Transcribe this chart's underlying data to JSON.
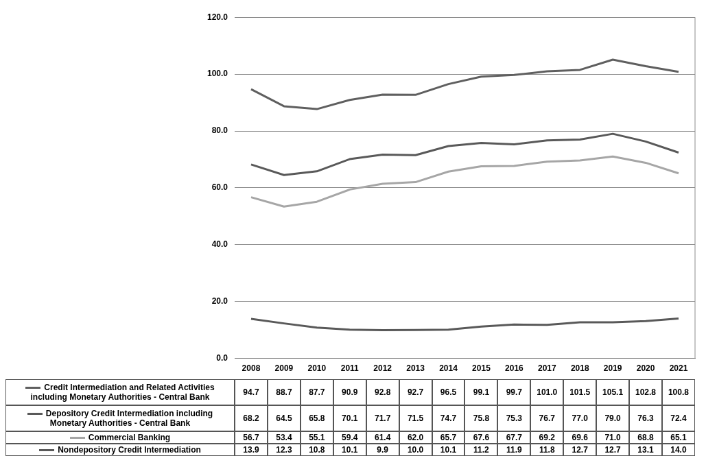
{
  "chart_data": {
    "type": "line",
    "categories": [
      "2008",
      "2009",
      "2010",
      "2011",
      "2012",
      "2013",
      "2014",
      "2015",
      "2016",
      "2017",
      "2018",
      "2019",
      "2020",
      "2021"
    ],
    "series": [
      {
        "name": "Credit Intermediation and Related Activities including Monetary Authorities - Central Bank",
        "color": "#5f5f5f",
        "values": [
          94.7,
          88.7,
          87.7,
          90.9,
          92.8,
          92.7,
          96.5,
          99.1,
          99.7,
          101.0,
          101.5,
          105.1,
          102.8,
          100.8
        ],
        "value_labels": [
          "94.7",
          "88.7",
          "87.7",
          "90.9",
          "92.8",
          "92.7",
          "96.5",
          "99.1",
          "99.7",
          "101.0",
          "101.5",
          "105.1",
          "102.8",
          "100.8"
        ]
      },
      {
        "name": "Depository Credit Intermediation including Monetary Authorities - Central Bank",
        "color": "#595959",
        "values": [
          68.2,
          64.5,
          65.8,
          70.1,
          71.7,
          71.5,
          74.7,
          75.8,
          75.3,
          76.7,
          77.0,
          79.0,
          76.3,
          72.4
        ],
        "value_labels": [
          "68.2",
          "64.5",
          "65.8",
          "70.1",
          "71.7",
          "71.5",
          "74.7",
          "75.8",
          "75.3",
          "76.7",
          "77.0",
          "79.0",
          "76.3",
          "72.4"
        ]
      },
      {
        "name": "Commercial Banking",
        "color": "#a6a6a6",
        "values": [
          56.7,
          53.4,
          55.1,
          59.4,
          61.4,
          62.0,
          65.7,
          67.6,
          67.7,
          69.2,
          69.6,
          71.0,
          68.8,
          65.1
        ],
        "value_labels": [
          "56.7",
          "53.4",
          "55.1",
          "59.4",
          "61.4",
          "62.0",
          "65.7",
          "67.6",
          "67.7",
          "69.2",
          "69.6",
          "71.0",
          "68.8",
          "65.1"
        ]
      },
      {
        "name": "Nondepository Credit Intermediation",
        "color": "#595959",
        "values": [
          13.9,
          12.3,
          10.8,
          10.1,
          9.9,
          10.0,
          10.1,
          11.2,
          11.9,
          11.8,
          12.7,
          12.7,
          13.1,
          14.0
        ],
        "value_labels": [
          "13.9",
          "12.3",
          "10.8",
          "10.1",
          "9.9",
          "10.0",
          "10.1",
          "11.2",
          "11.9",
          "11.8",
          "12.7",
          "12.7",
          "13.1",
          "14.0"
        ]
      }
    ],
    "ylim": [
      0,
      120
    ],
    "yticks": [
      {
        "value": 0,
        "label": "0.0"
      },
      {
        "value": 20,
        "label": "20.0"
      },
      {
        "value": 40,
        "label": "40.0"
      },
      {
        "value": 60,
        "label": "60.0"
      },
      {
        "value": 80,
        "label": "80.0"
      },
      {
        "value": 100,
        "label": "100.0"
      },
      {
        "value": 120,
        "label": "120.0"
      }
    ],
    "grid": "y",
    "legend": "bottom",
    "marker": "none",
    "line_style": "solid"
  }
}
